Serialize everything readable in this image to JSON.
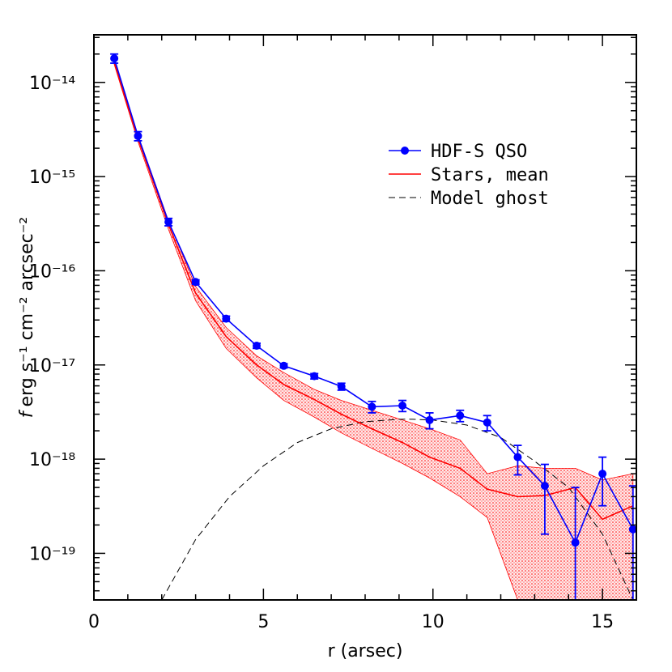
{
  "chart_data": {
    "type": "line",
    "xlabel": "r (arsec)",
    "ylabel": "f erg s⁻¹ cm⁻² arcsec⁻²",
    "ylabel_parts": {
      "f": "f",
      "rest": "erg s⁻¹ cm⁻² arcsec⁻²"
    },
    "xlim": [
      0,
      16
    ],
    "ylim": [
      3.2e-20,
      3.2e-14
    ],
    "yscale": "log",
    "x_ticks": [
      0,
      5,
      10,
      15
    ],
    "x_tick_labels": [
      "0",
      "5",
      "10",
      "15"
    ],
    "y_ticks": [
      1e-14,
      1e-15,
      1e-16,
      1e-17,
      1e-18,
      1e-19
    ],
    "y_tick_labels": [
      "10⁻¹⁴",
      "10⁻¹⁵",
      "10⁻¹⁶",
      "10⁻¹⁷",
      "10⁻¹⁸",
      "10⁻¹⁹"
    ],
    "legend_position": "upper-right",
    "series": [
      {
        "name": "HDF-S QSO",
        "style": "line-markers",
        "color": "#0000ff",
        "x": [
          0.6,
          1.3,
          2.2,
          3.0,
          3.9,
          4.8,
          5.6,
          6.5,
          7.3,
          8.2,
          9.1,
          9.9,
          10.8,
          11.6,
          12.5,
          13.3,
          14.2,
          15.0,
          15.9
        ],
        "y": [
          1.8e-14,
          2.7e-15,
          3.3e-16,
          7.6e-17,
          3.1e-17,
          1.6e-17,
          9.8e-18,
          7.6e-18,
          5.9e-18,
          3.6e-18,
          3.7e-18,
          2.6e-18,
          2.9e-18,
          2.45e-18,
          1.05e-18,
          5.2e-19,
          1.3e-19,
          7e-19,
          1.8e-19
        ],
        "y_err_low": [
          1.6e-14,
          2.4e-15,
          3e-16,
          7.2e-17,
          2.9e-17,
          1.5e-17,
          9.3e-18,
          7.1e-18,
          5.4e-18,
          3.1e-18,
          3.2e-18,
          2.1e-18,
          2.5e-18,
          2e-18,
          6.8e-19,
          1.6e-19,
          1e-20,
          3.2e-19,
          1e-20
        ],
        "y_err_high": [
          2e-14,
          3e-15,
          3.6e-16,
          8e-17,
          3.3e-17,
          1.7e-17,
          1.03e-17,
          8.1e-18,
          6.4e-18,
          4.1e-18,
          4.2e-18,
          3.1e-18,
          3.3e-18,
          2.9e-18,
          1.4e-18,
          8.8e-19,
          5e-19,
          1.05e-18,
          5.2e-19
        ]
      },
      {
        "name": "Stars, mean",
        "style": "line-band",
        "color": "#ff0000",
        "x": [
          0.6,
          1.3,
          2.2,
          3.0,
          3.9,
          4.8,
          5.6,
          6.5,
          7.3,
          8.2,
          9.1,
          9.9,
          10.8,
          11.6,
          12.5,
          13.3,
          14.2,
          15.0,
          15.9
        ],
        "y": [
          1.65e-14,
          2.55e-15,
          3.1e-16,
          5.8e-17,
          2e-17,
          1e-17,
          6.2e-18,
          4.3e-18,
          3e-18,
          2.1e-18,
          1.5e-18,
          1.05e-18,
          8e-19,
          4.8e-19,
          4e-19,
          4.1e-19,
          5e-19,
          2.3e-19,
          3.2e-19
        ],
        "band_upper": [
          1.75e-14,
          2.75e-15,
          3.4e-16,
          6.8e-17,
          2.5e-17,
          1.25e-17,
          8.3e-18,
          5.5e-18,
          4.2e-18,
          3.3e-18,
          2.6e-18,
          2.1e-18,
          1.6e-18,
          7e-19,
          8.5e-19,
          8e-19,
          8e-19,
          6e-19,
          7e-19
        ],
        "band_lower": [
          1.55e-14,
          2.35e-15,
          2.75e-16,
          4.8e-17,
          1.5e-17,
          7.3e-18,
          4.2e-18,
          2.8e-18,
          1.9e-18,
          1.3e-18,
          9e-19,
          6.3e-19,
          4e-19,
          2.4e-19,
          3.2e-20,
          3.2e-20,
          3.2e-20,
          3.2e-20,
          3.2e-20
        ]
      },
      {
        "name": "Model ghost",
        "style": "dashed",
        "color": "#000000",
        "x": [
          2.0,
          3.0,
          4.0,
          5.0,
          6.0,
          7.0,
          8.0,
          9.0,
          9.3,
          10.0,
          11.0,
          12.0,
          13.0,
          14.0,
          15.0,
          15.9
        ],
        "y": [
          3.2e-20,
          1.4e-19,
          4e-19,
          8.5e-19,
          1.5e-18,
          2.1e-18,
          2.5e-18,
          2.65e-18,
          2.66e-18,
          2.6e-18,
          2.3e-18,
          1.7e-18,
          9.5e-19,
          5e-19,
          1.6e-19,
          3.2e-20
        ]
      }
    ]
  }
}
